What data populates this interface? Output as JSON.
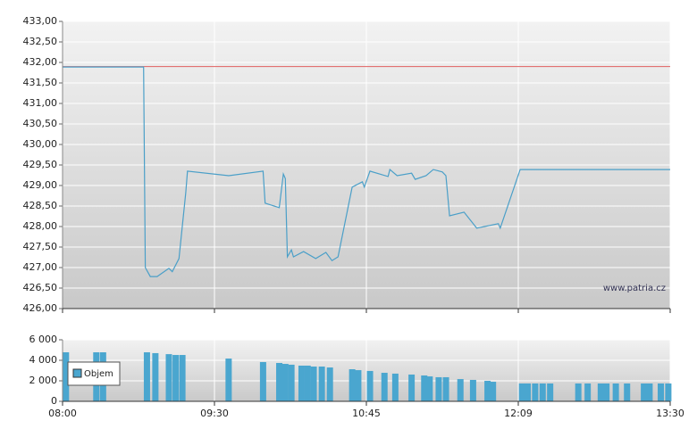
{
  "chart_data": [
    {
      "type": "line",
      "x": [
        "08:00",
        "08:48",
        "08:49",
        "08:52",
        "08:56",
        "09:03",
        "09:05",
        "09:09",
        "09:13",
        "09:14",
        "09:37",
        "09:54",
        "09:55",
        "10:02",
        "10:04",
        "10:05",
        "10:06",
        "10:08",
        "10:09",
        "10:14",
        "10:20",
        "10:25",
        "10:28",
        "10:31",
        "10:38",
        "10:43",
        "10:44",
        "10:47",
        "10:57",
        "10:58",
        "11:02",
        "11:10",
        "11:12",
        "11:18",
        "11:22",
        "11:27",
        "11:29",
        "11:31",
        "11:39",
        "11:46",
        "11:58",
        "11:59",
        "12:10",
        "13:30"
      ],
      "values": [
        431.89,
        431.89,
        427.0,
        426.78,
        426.78,
        426.98,
        426.9,
        427.22,
        428.83,
        429.35,
        429.24,
        429.35,
        428.57,
        428.46,
        429.28,
        429.17,
        427.26,
        427.43,
        427.26,
        427.39,
        427.22,
        427.37,
        427.17,
        427.26,
        428.96,
        429.09,
        428.96,
        429.35,
        429.22,
        429.39,
        429.24,
        429.3,
        429.15,
        429.24,
        429.39,
        429.33,
        429.24,
        428.26,
        428.35,
        427.96,
        428.07,
        427.96,
        429.39,
        429.39
      ],
      "color": "#4a9fc8",
      "reference": 431.9,
      "reference_color": "#e06060",
      "annotation": "www.patria.cz",
      "ylim": [
        426,
        433
      ],
      "yticks": [
        {
          "value": 426,
          "label": "426,00"
        },
        {
          "value": 426.5,
          "label": "426,50"
        },
        {
          "value": 427,
          "label": "427,00"
        },
        {
          "value": 427.5,
          "label": "427,50"
        },
        {
          "value": 428,
          "label": "428,00"
        },
        {
          "value": 428.5,
          "label": "428,50"
        },
        {
          "value": 429,
          "label": "429,00"
        },
        {
          "value": 429.5,
          "label": "429,50"
        },
        {
          "value": 430,
          "label": "430,00"
        },
        {
          "value": 430.5,
          "label": "430,50"
        },
        {
          "value": 431,
          "label": "431,00"
        },
        {
          "value": 431.5,
          "label": "431,50"
        },
        {
          "value": 432,
          "label": "432,00"
        },
        {
          "value": 432.5,
          "label": "432,50"
        },
        {
          "value": 433,
          "label": "433,00"
        }
      ],
      "grid": true
    },
    {
      "type": "bar",
      "x": [
        "08:02",
        "08:20",
        "08:24",
        "08:50",
        "08:55",
        "09:03",
        "09:07",
        "09:11",
        "09:37",
        "09:54",
        "10:02",
        "10:05",
        "10:08",
        "10:13",
        "10:16",
        "10:19",
        "10:23",
        "10:27",
        "10:38",
        "10:41",
        "10:47",
        "10:55",
        "11:01",
        "11:10",
        "11:17",
        "11:20",
        "11:25",
        "11:29",
        "11:37",
        "11:44",
        "11:52",
        "11:55",
        "12:11",
        "12:14",
        "12:18",
        "12:22",
        "12:26",
        "12:41",
        "12:46",
        "12:53",
        "12:56",
        "13:01",
        "13:07",
        "13:16",
        "13:19",
        "13:25",
        "13:29"
      ],
      "series": [
        {
          "name": "Objem",
          "color": "#4aa6cf",
          "values": [
            4780,
            4780,
            4780,
            4780,
            4700,
            4600,
            4520,
            4520,
            4170,
            3830,
            3740,
            3650,
            3570,
            3480,
            3480,
            3390,
            3390,
            3300,
            3130,
            3040,
            2960,
            2780,
            2700,
            2610,
            2520,
            2430,
            2350,
            2350,
            2170,
            2090,
            2000,
            1910,
            1740,
            1740,
            1740,
            1740,
            1740,
            1740,
            1740,
            1740,
            1740,
            1740,
            1740,
            1740,
            1740,
            1740,
            1740
          ]
        }
      ],
      "xlim": [
        "08:00",
        "13:30"
      ],
      "xticks": [
        "08:00",
        "09:30",
        "10:45",
        "12:09",
        "13:30"
      ],
      "ylim": [
        0,
        6000
      ],
      "yticks": [
        0,
        {
          "value": 2000,
          "label": "2 000"
        },
        {
          "value": 4000,
          "label": "4 000"
        },
        {
          "value": 6000,
          "label": "6 000"
        }
      ],
      "grid": true
    }
  ]
}
